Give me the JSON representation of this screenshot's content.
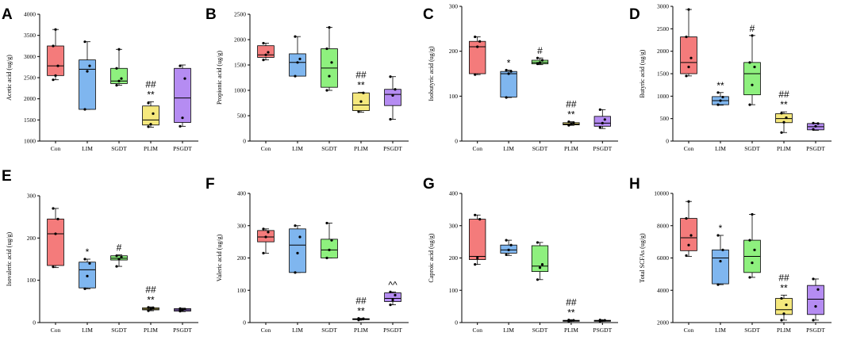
{
  "chart_data": [
    {
      "letter": "A",
      "type": "box",
      "ylabel": "Acetic acid (ug/g)",
      "ylim": [
        1000,
        4000
      ],
      "yticks": [
        1000,
        1500,
        2000,
        2500,
        3000,
        3500,
        4000
      ],
      "groups": [
        {
          "name": "Con",
          "color": "#f47b7b",
          "min": 2450,
          "q1": 2550,
          "median": 2780,
          "q3": 3250,
          "max": 3640,
          "points": [
            2450,
            2550,
            2780,
            3250,
            3640
          ],
          "sig": []
        },
        {
          "name": "LIM",
          "color": "#7fb6ef",
          "min": 1750,
          "q1": 1750,
          "median": 2700,
          "q3": 2920,
          "max": 3350,
          "points": [
            1750,
            2650,
            2780,
            3350
          ],
          "sig": []
        },
        {
          "name": "SGDT",
          "color": "#8ef07e",
          "min": 2320,
          "q1": 2360,
          "median": 2420,
          "q3": 2720,
          "max": 3170,
          "points": [
            2320,
            2420,
            2480,
            2720,
            3170
          ],
          "sig": []
        },
        {
          "name": "PLIM",
          "color": "#f5e87d",
          "min": 1330,
          "q1": 1380,
          "median": 1500,
          "q3": 1830,
          "max": 1930,
          "points": [
            1340,
            1400,
            1650,
            1900
          ],
          "sig": [
            "##",
            "**"
          ]
        },
        {
          "name": "PSGDT",
          "color": "#b58cf2",
          "min": 1350,
          "q1": 1440,
          "median": 2020,
          "q3": 2720,
          "max": 2800,
          "points": [
            1350,
            1550,
            2480,
            2780
          ],
          "sig": []
        }
      ]
    },
    {
      "letter": "B",
      "type": "box",
      "ylabel": "Propionic acid (ug/g)",
      "ylim": [
        0,
        2500
      ],
      "yticks": [
        0,
        500,
        1000,
        1500,
        2000,
        2500
      ],
      "groups": [
        {
          "name": "Con",
          "color": "#f47b7b",
          "min": 1600,
          "q1": 1650,
          "median": 1700,
          "q3": 1880,
          "max": 1930,
          "points": [
            1600,
            1700,
            1750,
            1930
          ],
          "sig": []
        },
        {
          "name": "LIM",
          "color": "#7fb6ef",
          "min": 1280,
          "q1": 1280,
          "median": 1550,
          "q3": 1720,
          "max": 2060,
          "points": [
            1280,
            1550,
            1620,
            2060
          ],
          "sig": []
        },
        {
          "name": "SGDT",
          "color": "#8ef07e",
          "min": 1000,
          "q1": 1060,
          "median": 1440,
          "q3": 1820,
          "max": 2240,
          "points": [
            1000,
            1280,
            1550,
            1820,
            2240
          ],
          "sig": []
        },
        {
          "name": "PLIM",
          "color": "#f5e87d",
          "min": 570,
          "q1": 600,
          "median": 710,
          "q3": 950,
          "max": 960,
          "points": [
            580,
            780,
            950
          ],
          "sig": [
            "##",
            "**"
          ]
        },
        {
          "name": "PSGDT",
          "color": "#b58cf2",
          "min": 430,
          "q1": 700,
          "median": 920,
          "q3": 1020,
          "max": 1270,
          "points": [
            430,
            900,
            1020,
            1270
          ],
          "sig": []
        }
      ]
    },
    {
      "letter": "C",
      "type": "box",
      "ylabel": "Isobutyric acid (ug/g)",
      "ylim": [
        0,
        300
      ],
      "yticks": [
        0,
        100,
        200,
        300
      ],
      "groups": [
        {
          "name": "Con",
          "color": "#f47b7b",
          "min": 148,
          "q1": 150,
          "median": 210,
          "q3": 222,
          "max": 232,
          "points": [
            148,
            210,
            222,
            232
          ],
          "sig": []
        },
        {
          "name": "LIM",
          "color": "#7fb6ef",
          "min": 97,
          "q1": 98,
          "median": 150,
          "q3": 155,
          "max": 158,
          "points": [
            97,
            150,
            155,
            158
          ],
          "sig": [
            "*"
          ]
        },
        {
          "name": "SGDT",
          "color": "#8ef07e",
          "min": 170,
          "q1": 172,
          "median": 175,
          "q3": 180,
          "max": 185,
          "points": [
            172,
            175,
            180,
            185
          ],
          "sig": [
            "#"
          ]
        },
        {
          "name": "PLIM",
          "color": "#f5e87d",
          "min": 35,
          "q1": 36,
          "median": 38,
          "q3": 41,
          "max": 43,
          "points": [
            35,
            38,
            41,
            43
          ],
          "sig": [
            "##",
            "**"
          ]
        },
        {
          "name": "PSGDT",
          "color": "#b58cf2",
          "min": 28,
          "q1": 33,
          "median": 40,
          "q3": 55,
          "max": 70,
          "points": [
            30,
            40,
            48,
            70
          ],
          "sig": []
        }
      ]
    },
    {
      "letter": "D",
      "type": "box",
      "ylabel": "Butyric acid (ug/g)",
      "ylim": [
        0,
        3000
      ],
      "yticks": [
        0,
        500,
        1000,
        1500,
        2000,
        2500,
        3000
      ],
      "groups": [
        {
          "name": "Con",
          "color": "#f47b7b",
          "min": 1450,
          "q1": 1500,
          "median": 1750,
          "q3": 2320,
          "max": 2930,
          "points": [
            1450,
            1650,
            1850,
            2320,
            2930
          ],
          "sig": []
        },
        {
          "name": "LIM",
          "color": "#7fb6ef",
          "min": 800,
          "q1": 810,
          "median": 900,
          "q3": 990,
          "max": 1080,
          "points": [
            810,
            900,
            980,
            1080
          ],
          "sig": [
            "**"
          ]
        },
        {
          "name": "SGDT",
          "color": "#8ef07e",
          "min": 810,
          "q1": 1030,
          "median": 1500,
          "q3": 1750,
          "max": 2350,
          "points": [
            810,
            1250,
            1650,
            1750,
            2350
          ],
          "sig": [
            "#"
          ]
        },
        {
          "name": "PLIM",
          "color": "#f5e87d",
          "min": 190,
          "q1": 410,
          "median": 500,
          "q3": 610,
          "max": 650,
          "points": [
            190,
            420,
            520,
            620
          ],
          "sig": [
            "##",
            "**"
          ]
        },
        {
          "name": "PSGDT",
          "color": "#b58cf2",
          "min": 240,
          "q1": 250,
          "median": 320,
          "q3": 390,
          "max": 400,
          "points": [
            260,
            330,
            390,
            400
          ],
          "sig": []
        }
      ]
    },
    {
      "letter": "E",
      "type": "box",
      "ylabel": "Isovaleric acid (ug/g)",
      "ylim": [
        0,
        300
      ],
      "yticks": [
        0,
        100,
        200,
        300
      ],
      "groups": [
        {
          "name": "Con",
          "color": "#f47b7b",
          "min": 130,
          "q1": 135,
          "median": 210,
          "q3": 245,
          "max": 270,
          "points": [
            132,
            210,
            245,
            270
          ],
          "sig": []
        },
        {
          "name": "LIM",
          "color": "#7fb6ef",
          "min": 80,
          "q1": 82,
          "median": 125,
          "q3": 143,
          "max": 150,
          "points": [
            80,
            110,
            140,
            150
          ],
          "sig": [
            "*"
          ]
        },
        {
          "name": "SGDT",
          "color": "#8ef07e",
          "min": 133,
          "q1": 148,
          "median": 152,
          "q3": 158,
          "max": 160,
          "points": [
            133,
            150,
            155,
            158
          ],
          "sig": [
            "#"
          ]
        },
        {
          "name": "PLIM",
          "color": "#f5e87d",
          "min": 28,
          "q1": 30,
          "median": 32,
          "q3": 35,
          "max": 37,
          "points": [
            28,
            32,
            35,
            36
          ],
          "sig": [
            "##",
            "**"
          ]
        },
        {
          "name": "PSGDT",
          "color": "#b58cf2",
          "min": 26,
          "q1": 27,
          "median": 30,
          "q3": 33,
          "max": 34,
          "points": [
            27,
            30,
            32,
            33
          ],
          "sig": []
        }
      ]
    },
    {
      "letter": "F",
      "type": "box",
      "ylabel": "Valeric acid (ug/g)",
      "ylim": [
        0,
        400
      ],
      "yticks": [
        0,
        100,
        200,
        300,
        400
      ],
      "groups": [
        {
          "name": "Con",
          "color": "#f47b7b",
          "min": 215,
          "q1": 250,
          "median": 265,
          "q3": 285,
          "max": 290,
          "points": [
            215,
            265,
            280,
            290
          ],
          "sig": []
        },
        {
          "name": "LIM",
          "color": "#7fb6ef",
          "min": 155,
          "q1": 155,
          "median": 240,
          "q3": 290,
          "max": 300,
          "points": [
            155,
            215,
            265,
            300
          ],
          "sig": []
        },
        {
          "name": "SGDT",
          "color": "#8ef07e",
          "min": 200,
          "q1": 200,
          "median": 225,
          "q3": 258,
          "max": 308,
          "points": [
            200,
            225,
            255,
            308
          ],
          "sig": []
        },
        {
          "name": "PLIM",
          "color": "#f5e87d",
          "min": 8,
          "q1": 9,
          "median": 10,
          "q3": 12,
          "max": 13,
          "points": [
            8,
            10,
            12,
            13
          ],
          "sig": [
            "##",
            "**"
          ]
        },
        {
          "name": "PSGDT",
          "color": "#b58cf2",
          "min": 55,
          "q1": 65,
          "median": 75,
          "q3": 92,
          "max": 95,
          "points": [
            55,
            70,
            85,
            95
          ],
          "sig": [
            "^^"
          ]
        }
      ]
    },
    {
      "letter": "G",
      "type": "box",
      "ylabel": "Caproic acid (ug/g)",
      "ylim": [
        0,
        400
      ],
      "yticks": [
        0,
        100,
        200,
        300,
        400
      ],
      "groups": [
        {
          "name": "Con",
          "color": "#f47b7b",
          "min": 180,
          "q1": 195,
          "median": 205,
          "q3": 320,
          "max": 333,
          "points": [
            180,
            200,
            320,
            333
          ],
          "sig": []
        },
        {
          "name": "LIM",
          "color": "#7fb6ef",
          "min": 208,
          "q1": 215,
          "median": 225,
          "q3": 240,
          "max": 255,
          "points": [
            210,
            225,
            240,
            255
          ],
          "sig": []
        },
        {
          "name": "SGDT",
          "color": "#8ef07e",
          "min": 133,
          "q1": 158,
          "median": 175,
          "q3": 238,
          "max": 248,
          "points": [
            133,
            170,
            180,
            248
          ],
          "sig": []
        },
        {
          "name": "PLIM",
          "color": "#f5e87d",
          "min": 4,
          "q1": 5,
          "median": 6,
          "q3": 7,
          "max": 8,
          "points": [
            4,
            6,
            7,
            8
          ],
          "sig": [
            "##",
            "**"
          ]
        },
        {
          "name": "PSGDT",
          "color": "#b58cf2",
          "min": 4,
          "q1": 5,
          "median": 6,
          "q3": 7,
          "max": 8,
          "points": [
            4,
            6,
            7,
            8
          ],
          "sig": []
        }
      ]
    },
    {
      "letter": "H",
      "type": "box",
      "ylabel": "Total SCFAs (ug/g)",
      "ylim": [
        2000,
        10000
      ],
      "yticks": [
        2000,
        4000,
        6000,
        8000,
        10000
      ],
      "groups": [
        {
          "name": "Con",
          "color": "#f47b7b",
          "min": 6100,
          "q1": 6450,
          "median": 7250,
          "q3": 8450,
          "max": 9500,
          "points": [
            6150,
            6800,
            7400,
            8450,
            9500
          ],
          "sig": []
        },
        {
          "name": "LIM",
          "color": "#7fb6ef",
          "min": 4350,
          "q1": 4400,
          "median": 6000,
          "q3": 6500,
          "max": 7400,
          "points": [
            4350,
            5800,
            6500,
            7400
          ],
          "sig": [
            "*"
          ]
        },
        {
          "name": "SGDT",
          "color": "#8ef07e",
          "min": 4800,
          "q1": 5100,
          "median": 6100,
          "q3": 7100,
          "max": 8700,
          "points": [
            4800,
            5700,
            6500,
            7100,
            8700
          ],
          "sig": []
        },
        {
          "name": "PLIM",
          "color": "#f5e87d",
          "min": 2150,
          "q1": 2500,
          "median": 2800,
          "q3": 3500,
          "max": 3700,
          "points": [
            2150,
            2550,
            3100,
            3500
          ],
          "sig": [
            "##",
            "**"
          ]
        },
        {
          "name": "PSGDT",
          "color": "#b58cf2",
          "min": 2150,
          "q1": 2500,
          "median": 3450,
          "q3": 4300,
          "max": 4700,
          "points": [
            2150,
            3000,
            4050,
            4700
          ],
          "sig": []
        }
      ]
    }
  ]
}
